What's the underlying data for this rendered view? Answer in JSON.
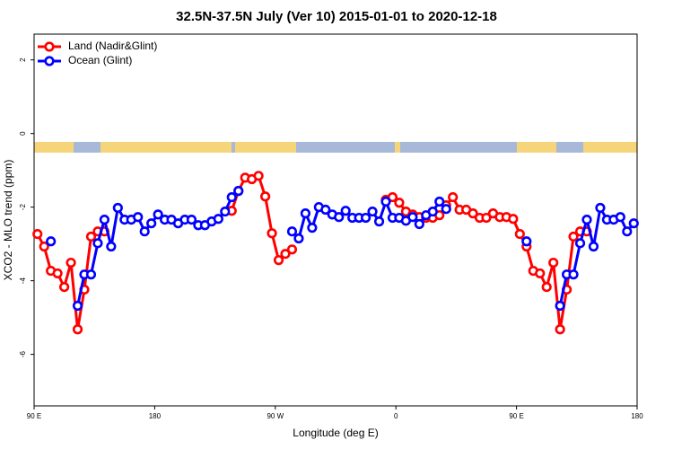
{
  "chart_data": {
    "type": "line",
    "title": "32.5N-37.5N July (Ver 10)   2015-01-01 to 2020-12-18",
    "x_label": "Longitude (deg E)",
    "y_label": "XCO2 - MLO trend (ppm)",
    "xlim": [
      90,
      540
    ],
    "ylim": [
      -7.4,
      2.7
    ],
    "xticks": [
      {
        "value": 90,
        "label": "90 E"
      },
      180,
      {
        "value": 270,
        "label": "90 W"
      },
      {
        "value": 360,
        "label": "0"
      },
      {
        "value": 450,
        "label": "90 E"
      },
      {
        "value": 540,
        "label": "180"
      }
    ],
    "yticks": [
      -6,
      -4,
      -2,
      0,
      2
    ],
    "legend": "top-left",
    "x": [
      92.5,
      97.5,
      102.5,
      107.5,
      112.5,
      117.5,
      122.5,
      127.5,
      132.5,
      137.5,
      142.5,
      147.5,
      152.5,
      157.5,
      162.5,
      167.5,
      172.5,
      177.5,
      182.5,
      187.5,
      192.5,
      197.5,
      202.5,
      207.5,
      212.5,
      217.5,
      222.5,
      227.5,
      232.5,
      237.5,
      242.5,
      247.5,
      252.5,
      257.5,
      262.5,
      267.5,
      272.5,
      277.5,
      282.5,
      287.5,
      292.5,
      297.5,
      302.5,
      307.5,
      312.5,
      317.5,
      322.5,
      327.5,
      332.5,
      337.5,
      342.5,
      347.5,
      352.5,
      357.5,
      362.5,
      367.5,
      372.5,
      377.5,
      382.5,
      387.5,
      392.5,
      397.5,
      402.5,
      407.5,
      412.5,
      417.5,
      422.5,
      427.5,
      432.5,
      437.5,
      442.5,
      447.5,
      452.5,
      457.5,
      462.5,
      467.5,
      472.5,
      477.5,
      482.5,
      487.5,
      492.5,
      497.5,
      502.5,
      507.5,
      512.5,
      517.5,
      522.5,
      527.5,
      532.5,
      537.5
    ],
    "series": [
      {
        "name": "Land (Nadir&Glint)",
        "color": "#ff0000",
        "values": [
          -2.73,
          -3.07,
          -3.73,
          -3.8,
          -4.17,
          -3.51,
          -5.32,
          -4.24,
          -2.8,
          -2.66,
          -2.66,
          null,
          null,
          null,
          null,
          null,
          null,
          null,
          null,
          null,
          null,
          null,
          null,
          null,
          null,
          null,
          null,
          null,
          null,
          -2.1,
          -1.56,
          -1.2,
          -1.24,
          -1.15,
          -1.71,
          -2.71,
          -3.44,
          -3.27,
          -3.15,
          null,
          null,
          null,
          null,
          null,
          null,
          null,
          null,
          null,
          null,
          null,
          null,
          null,
          -1.8,
          -1.73,
          -1.88,
          -2.12,
          -2.2,
          -2.27,
          -2.29,
          -2.29,
          -2.22,
          -1.95,
          -1.73,
          -2.07,
          -2.07,
          -2.17,
          -2.29,
          -2.29,
          -2.17,
          -2.27,
          -2.27,
          -2.32,
          -2.73,
          -3.07,
          -3.73,
          -3.8,
          -4.17,
          -3.51,
          -5.32,
          -4.24,
          -2.8,
          -2.66,
          -2.66,
          null,
          null,
          null,
          null,
          null,
          null,
          null
        ]
      },
      {
        "name": "Ocean (Glint)",
        "color": "#0000ff",
        "values": [
          null,
          null,
          -2.93,
          null,
          null,
          null,
          -4.68,
          -3.83,
          -3.83,
          -2.98,
          -2.34,
          -3.07,
          -2.02,
          -2.34,
          -2.34,
          -2.27,
          -2.66,
          -2.44,
          -2.2,
          -2.34,
          -2.34,
          -2.44,
          -2.34,
          -2.34,
          -2.49,
          -2.49,
          -2.39,
          -2.32,
          -2.12,
          -1.73,
          -1.56,
          null,
          null,
          null,
          null,
          null,
          null,
          null,
          -2.66,
          -2.85,
          -2.17,
          -2.56,
          -2.0,
          -2.07,
          -2.2,
          -2.27,
          -2.1,
          -2.29,
          -2.29,
          -2.29,
          -2.12,
          -2.39,
          -1.85,
          -2.29,
          -2.29,
          -2.37,
          -2.27,
          -2.46,
          -2.22,
          -2.12,
          -1.85,
          -2.05,
          null,
          null,
          null,
          null,
          null,
          null,
          null,
          null,
          null,
          null,
          null,
          -2.93,
          null,
          null,
          null,
          null,
          -4.68,
          -3.83,
          -3.83,
          -2.98,
          -2.34,
          -3.07,
          -2.02,
          -2.34,
          -2.34,
          -2.27,
          -2.66,
          -2.44
        ]
      }
    ]
  }
}
